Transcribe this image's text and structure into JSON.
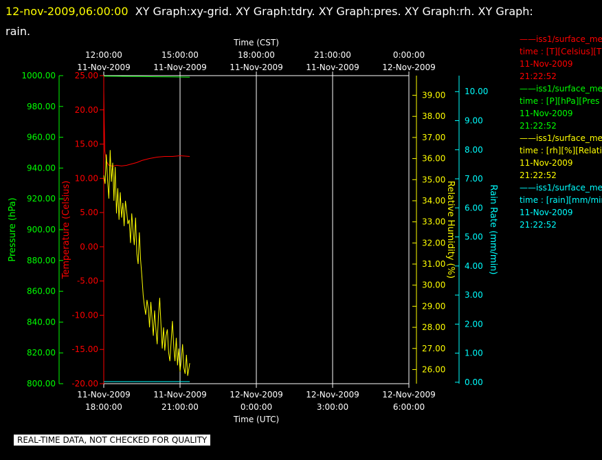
{
  "header": {
    "timestamp": "12-nov-2009,06:00:00",
    "titles": "XY Graph:xy-grid.  XY Graph:tdry.  XY Graph:pres.  XY Graph:rh.  XY Graph:",
    "titles_line2": "rain."
  },
  "quality_notice": "REAL-TIME DATA, NOT CHECKED FOR QUALITY",
  "legend": [
    {
      "name": "iss1/surface_me",
      "var": "time : [T][Celsius][T",
      "date": "11-Nov-2009",
      "time": "21:22:52",
      "color": "#ff0000"
    },
    {
      "name": "iss1/surface_me",
      "var": "time : [P][hPa][Pres",
      "date": "11-Nov-2009",
      "time": "21:22:52",
      "color": "#00ff00"
    },
    {
      "name": "iss1/surface_me",
      "var": "time : [rh][%][Relati",
      "date": "11-Nov-2009",
      "time": "21:22:52",
      "color": "#ffff00"
    },
    {
      "name": "iss1/surface_me",
      "var": "time : [rain][mm/mir",
      "date": "11-Nov-2009",
      "time": "21:22:52",
      "color": "#00ffff"
    }
  ],
  "chart_data": {
    "type": "line",
    "top_axis": {
      "title": "Time (CST)",
      "ticks": [
        {
          "time": "12:00:00",
          "date": "11-Nov-2009"
        },
        {
          "time": "15:00:00",
          "date": "11-Nov-2009"
        },
        {
          "time": "18:00:00",
          "date": "11-Nov-2009"
        },
        {
          "time": "21:00:00",
          "date": "11-Nov-2009"
        },
        {
          "time": "0:00:00",
          "date": "12-Nov-2009"
        }
      ]
    },
    "bottom_axis": {
      "title": "Time (UTC)",
      "ticks": [
        {
          "date": "11-Nov-2009",
          "time": "18:00:00"
        },
        {
          "date": "11-Nov-2009",
          "time": "21:00:00"
        },
        {
          "date": "12-Nov-2009",
          "time": "0:00:00"
        },
        {
          "date": "12-Nov-2009",
          "time": "3:00:00"
        },
        {
          "date": "12-Nov-2009",
          "time": "6:00:00"
        }
      ]
    },
    "x_range_hours_utc": [
      18,
      30
    ],
    "axes": {
      "pressure": {
        "label": "Pressure (hPa)",
        "ticks": [
          "800.00",
          "820.00",
          "840.00",
          "860.00",
          "880.00",
          "900.00",
          "920.00",
          "940.00",
          "960.00",
          "980.00",
          "1000.00"
        ],
        "range": [
          800,
          1000
        ],
        "color": "#00ff00"
      },
      "temperature": {
        "label": "Temperature (Celsius)",
        "ticks": [
          "-20.00",
          "-15.00",
          "-10.00",
          "-5.00",
          "0.00",
          "5.00",
          "10.00",
          "15.00",
          "20.00",
          "25.00"
        ],
        "range": [
          -20,
          25
        ],
        "color": "#ff0000"
      },
      "rh": {
        "label": "Relative Humidity (%)",
        "ticks": [
          "26.00",
          "27.00",
          "28.00",
          "29.00",
          "30.00",
          "31.00",
          "32.00",
          "33.00",
          "34.00",
          "35.00",
          "36.00",
          "37.00",
          "38.00",
          "39.00"
        ],
        "range": [
          25.33,
          39.93
        ],
        "color": "#ffff00"
      },
      "rain": {
        "label": "Rain Rate (mm/min)",
        "ticks": [
          "0.00",
          "1.00",
          "2.00",
          "3.00",
          "4.00",
          "5.00",
          "6.00",
          "7.00",
          "8.00",
          "9.00",
          "10.00"
        ],
        "range": [
          -0.05,
          10.55
        ],
        "color": "#00ffff"
      }
    },
    "series": [
      {
        "name": "T",
        "color": "#ff0000",
        "axis": "temperature",
        "x": [
          18.0,
          18.02,
          18.04,
          18.1,
          18.2,
          18.3,
          18.4,
          18.5,
          18.7,
          18.9,
          19.1,
          19.3,
          19.5,
          19.8,
          20.1,
          20.4,
          20.7,
          21.0,
          21.38
        ],
        "y": [
          22.8,
          18.0,
          14.0,
          12.5,
          11.9,
          11.8,
          11.8,
          11.9,
          11.8,
          11.9,
          12.1,
          12.3,
          12.6,
          12.9,
          13.1,
          13.2,
          13.2,
          13.3,
          13.2
        ]
      },
      {
        "name": "P",
        "color": "#00ff00",
        "axis": "pressure",
        "x": [
          18.0,
          18.5,
          19.0,
          19.5,
          20.0,
          20.5,
          21.0,
          21.38
        ],
        "y": [
          999.7,
          999.6,
          999.5,
          999.4,
          999.3,
          999.2,
          999.1,
          999.0
        ]
      },
      {
        "name": "rh",
        "color": "#ffff00",
        "axis": "rh",
        "x": [
          18.0,
          18.05,
          18.1,
          18.15,
          18.2,
          18.25,
          18.3,
          18.35,
          18.4,
          18.45,
          18.5,
          18.55,
          18.6,
          18.65,
          18.7,
          18.75,
          18.8,
          18.85,
          18.9,
          18.95,
          19.0,
          19.05,
          19.1,
          19.15,
          19.2,
          19.25,
          19.3,
          19.35,
          19.4,
          19.45,
          19.5,
          19.55,
          19.6,
          19.65,
          19.7,
          19.75,
          19.8,
          19.85,
          19.9,
          19.95,
          20.0,
          20.05,
          20.1,
          20.15,
          20.2,
          20.25,
          20.3,
          20.35,
          20.4,
          20.45,
          20.5,
          20.55,
          20.6,
          20.65,
          20.7,
          20.75,
          20.8,
          20.85,
          20.9,
          20.95,
          21.0,
          21.05,
          21.1,
          21.15,
          21.2,
          21.25,
          21.3,
          21.38
        ],
        "y": [
          35.2,
          34.8,
          36.2,
          35.0,
          34.1,
          36.4,
          34.9,
          35.8,
          34.0,
          35.6,
          33.4,
          34.6,
          33.1,
          34.4,
          33.2,
          33.9,
          32.8,
          34.0,
          33.5,
          32.9,
          33.1,
          32.0,
          33.4,
          32.6,
          31.9,
          33.2,
          31.5,
          31.0,
          32.5,
          31.2,
          30.4,
          29.5,
          29.0,
          28.6,
          29.3,
          28.9,
          28.0,
          29.2,
          28.4,
          27.6,
          28.8,
          27.9,
          27.2,
          28.5,
          29.4,
          28.1,
          27.0,
          28.0,
          26.9,
          27.6,
          27.9,
          26.8,
          26.4,
          27.3,
          28.3,
          27.1,
          26.4,
          27.5,
          26.2,
          27.0,
          25.9,
          26.5,
          27.2,
          26.1,
          25.8,
          26.7,
          25.7,
          26.3
        ]
      },
      {
        "name": "rain",
        "color": "#00ffff",
        "axis": "rain",
        "x": [
          18.0,
          18.5,
          19.0,
          19.5,
          20.0,
          20.5,
          21.0,
          21.38
        ],
        "y": [
          0.02,
          0.02,
          0.02,
          0.02,
          0.02,
          0.02,
          0.02,
          0.02
        ]
      }
    ]
  }
}
